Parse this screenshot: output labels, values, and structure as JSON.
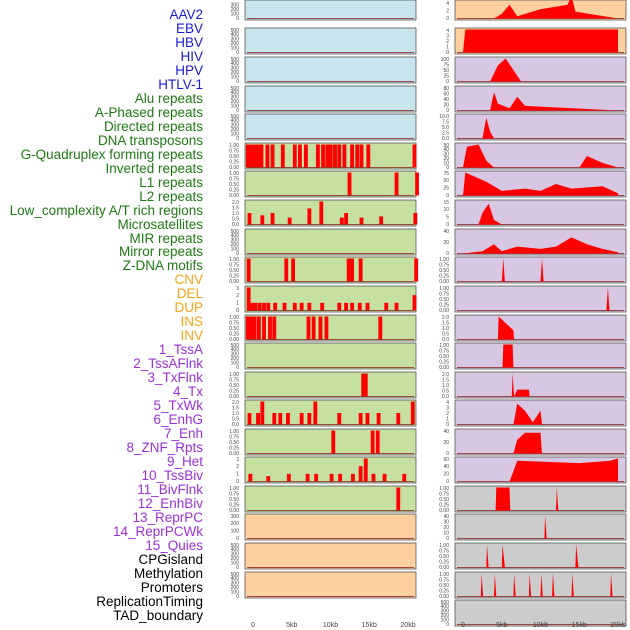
{
  "chart_data": {
    "type": "bar",
    "title": "",
    "x_ticks": [
      "0",
      "5kb",
      "10kb",
      "15kb",
      "20kb"
    ],
    "x_range": [
      0,
      20
    ],
    "x_units": "kb",
    "track_labels": [
      {
        "text": "AAV2",
        "color": "#1a1ad6"
      },
      {
        "text": "EBV",
        "color": "#1a1ad6"
      },
      {
        "text": "HBV",
        "color": "#1a1ad6"
      },
      {
        "text": "HIV",
        "color": "#1a1ad6"
      },
      {
        "text": "HPV",
        "color": "#1a1ad6"
      },
      {
        "text": "HTLV-1",
        "color": "#1a1ad6"
      },
      {
        "text": "Alu repeats",
        "color": "#1e7a12"
      },
      {
        "text": "A-Phased repeats",
        "color": "#1e7a12"
      },
      {
        "text": "Directed repeats",
        "color": "#1e7a12"
      },
      {
        "text": "DNA transposons",
        "color": "#1e7a12"
      },
      {
        "text": "G-Quadruplex forming repeats",
        "color": "#1e7a12"
      },
      {
        "text": "Inverted repeats",
        "color": "#1e7a12"
      },
      {
        "text": "L1 repeats",
        "color": "#1e7a12"
      },
      {
        "text": "L2 repeats",
        "color": "#1e7a12"
      },
      {
        "text": "Low_complexity A/T rich regions",
        "color": "#1e7a12"
      },
      {
        "text": "Microsatellites",
        "color": "#1e7a12"
      },
      {
        "text": "MIR repeats",
        "color": "#1e7a12"
      },
      {
        "text": "Mirror repeats",
        "color": "#1e7a12"
      },
      {
        "text": "Z-DNA motifs",
        "color": "#1e7a12"
      },
      {
        "text": "CNV",
        "color": "#f5a516"
      },
      {
        "text": "DEL",
        "color": "#f5a516"
      },
      {
        "text": "DUP",
        "color": "#f5a516"
      },
      {
        "text": "INS",
        "color": "#f5a516"
      },
      {
        "text": "INV",
        "color": "#f5a516"
      },
      {
        "text": "1_TssA",
        "color": "#9b30d9"
      },
      {
        "text": "2_TssAFlnk",
        "color": "#9b30d9"
      },
      {
        "text": "3_TxFlnk",
        "color": "#9b30d9"
      },
      {
        "text": "4_Tx",
        "color": "#9b30d9"
      },
      {
        "text": "5_TxWk",
        "color": "#9b30d9"
      },
      {
        "text": "6_EnhG",
        "color": "#9b30d9"
      },
      {
        "text": "7_Enh",
        "color": "#9b30d9"
      },
      {
        "text": "8_ZNF_Rpts",
        "color": "#9b30d9"
      },
      {
        "text": "9_Het",
        "color": "#9b30d9"
      },
      {
        "text": "10_TssBiv",
        "color": "#9b30d9"
      },
      {
        "text": "11_BivFlnk",
        "color": "#9b30d9"
      },
      {
        "text": "12_EnhBiv",
        "color": "#9b30d9"
      },
      {
        "text": "13_ReprPC",
        "color": "#9b30d9"
      },
      {
        "text": "14_ReprPCWk",
        "color": "#9b30d9"
      },
      {
        "text": "15_Quies",
        "color": "#9b30d9"
      },
      {
        "text": "CPGisland",
        "color": "#000000"
      },
      {
        "text": "Methylation",
        "color": "#000000"
      },
      {
        "text": "Promoters",
        "color": "#000000"
      },
      {
        "text": "ReplicationTiming",
        "color": "#000000"
      },
      {
        "text": "TAD_boundary",
        "color": "#000000"
      }
    ],
    "colors": {
      "blue_bg": "#c8e4ec",
      "green_bg": "#c6e0a2",
      "orange_bg": "#fdd09f",
      "purple_bg": "#d8c7e2",
      "gray_bg": "#cccccc",
      "bar": "#ff0000",
      "baseline": "#8b1a1a"
    },
    "left_panels": [
      {
        "bg": "blue",
        "ticks": [
          "500",
          "400",
          "300",
          "200",
          "100",
          "0"
        ],
        "max": 500,
        "bars": []
      },
      {
        "bg": "blue",
        "ticks": [
          "500",
          "400",
          "300",
          "200",
          "100",
          "0"
        ],
        "max": 500,
        "bars": []
      },
      {
        "bg": "blue",
        "ticks": [
          "500",
          "400",
          "300",
          "200",
          "100",
          "0"
        ],
        "max": 500,
        "bars": []
      },
      {
        "bg": "blue",
        "ticks": [
          "500",
          "400",
          "300",
          "200",
          "100",
          "0"
        ],
        "max": 500,
        "bars": []
      },
      {
        "bg": "blue",
        "ticks": [
          "500",
          "400",
          "300",
          "200",
          "100",
          "0"
        ],
        "max": 500,
        "bars": []
      },
      {
        "bg": "green",
        "ticks": [
          "1.00",
          "0.75",
          "0.50",
          "0.25",
          "0.00"
        ],
        "max": 1.0,
        "bars": [
          [
            0.1,
            1
          ],
          [
            0.5,
            1
          ],
          [
            0.9,
            1
          ],
          [
            1.3,
            1
          ],
          [
            1.7,
            1
          ],
          [
            2.4,
            1
          ],
          [
            3.0,
            1
          ],
          [
            4.2,
            1
          ],
          [
            5.6,
            1
          ],
          [
            6.2,
            1
          ],
          [
            6.9,
            1
          ],
          [
            8.3,
            1
          ],
          [
            8.9,
            1
          ],
          [
            9.4,
            1
          ],
          [
            9.8,
            1
          ],
          [
            10.3,
            1
          ],
          [
            10.8,
            1
          ],
          [
            11.4,
            1
          ],
          [
            12.3,
            1
          ],
          [
            12.9,
            1
          ],
          [
            13.4,
            1
          ],
          [
            14.2,
            1
          ],
          [
            19.6,
            1
          ]
        ]
      },
      {
        "bg": "green",
        "ticks": [
          "1.00",
          "0.75",
          "0.50",
          "0.25",
          "0.00"
        ],
        "max": 1.0,
        "bars": [
          [
            12.0,
            1
          ],
          [
            17.5,
            1
          ],
          [
            19.9,
            1
          ]
        ]
      },
      {
        "bg": "green",
        "ticks": [
          "2.0",
          "1.5",
          "1.0",
          "0.5",
          "0.0"
        ],
        "max": 2.0,
        "bars": [
          [
            0.3,
            1
          ],
          [
            1.8,
            0.8
          ],
          [
            3.0,
            1
          ],
          [
            5.0,
            0.6
          ],
          [
            7.3,
            1.4
          ],
          [
            8.7,
            2
          ],
          [
            11.1,
            0.6
          ],
          [
            11.6,
            1
          ],
          [
            13.4,
            0.6
          ],
          [
            15.7,
            0.7
          ],
          [
            19.7,
            1
          ]
        ]
      },
      {
        "bg": "green",
        "ticks": [
          "500",
          "400",
          "300",
          "200",
          "100",
          "0"
        ],
        "max": 500,
        "bars": []
      },
      {
        "bg": "green",
        "ticks": [
          "1.00",
          "0.75",
          "0.50",
          "0.25",
          "0.00"
        ],
        "max": 1.0,
        "bars": [
          [
            0.2,
            1
          ],
          [
            4.6,
            1
          ],
          [
            5.4,
            1
          ],
          [
            11.9,
            1
          ],
          [
            12.3,
            1
          ],
          [
            13.3,
            1
          ],
          [
            19.8,
            1
          ]
        ]
      },
      {
        "bg": "green",
        "ticks": [
          "3",
          "2",
          "1",
          "0"
        ],
        "max": 3,
        "bars": [
          [
            0.2,
            3
          ],
          [
            0.6,
            1
          ],
          [
            1.0,
            1
          ],
          [
            1.5,
            1
          ],
          [
            2.0,
            1
          ],
          [
            2.5,
            1
          ],
          [
            3.3,
            1
          ],
          [
            4.4,
            1
          ],
          [
            5.6,
            1
          ],
          [
            6.4,
            1
          ],
          [
            7.3,
            1
          ],
          [
            8.8,
            1
          ],
          [
            10.8,
            1
          ],
          [
            11.6,
            1
          ],
          [
            12.3,
            1
          ],
          [
            13.2,
            1
          ],
          [
            14.1,
            1
          ],
          [
            16.3,
            1
          ],
          [
            17.5,
            1
          ],
          [
            19.6,
            2
          ]
        ]
      },
      {
        "bg": "green",
        "ticks": [
          "1.00",
          "0.75",
          "0.50",
          "0.25",
          "0.00"
        ],
        "max": 1.0,
        "bars": [
          [
            0.1,
            1
          ],
          [
            0.5,
            1
          ],
          [
            0.9,
            1
          ],
          [
            1.4,
            1
          ],
          [
            2.0,
            1
          ],
          [
            2.7,
            1
          ],
          [
            3.2,
            1
          ],
          [
            7.2,
            1
          ],
          [
            7.8,
            1
          ],
          [
            8.6,
            1
          ],
          [
            9.3,
            1
          ],
          [
            15.6,
            1
          ]
        ]
      },
      {
        "bg": "green",
        "ticks": [
          "500",
          "400",
          "300",
          "200",
          "100",
          "0"
        ],
        "max": 500,
        "bars": []
      },
      {
        "bg": "green",
        "ticks": [
          "1.00",
          "0.75",
          "0.50",
          "0.25",
          "0.00"
        ],
        "max": 1.0,
        "bars": [
          [
            13.6,
            1
          ],
          [
            13.9,
            1
          ]
        ]
      },
      {
        "bg": "green",
        "ticks": [
          "2.0",
          "1.5",
          "1.0",
          "0.5",
          "0.0"
        ],
        "max": 2.0,
        "bars": [
          [
            0.3,
            1
          ],
          [
            1.3,
            1
          ],
          [
            1.8,
            2
          ],
          [
            3.2,
            1
          ],
          [
            3.9,
            1
          ],
          [
            4.8,
            1
          ],
          [
            6.4,
            1
          ],
          [
            7.3,
            1
          ],
          [
            8.0,
            2
          ],
          [
            10.8,
            1
          ],
          [
            13.3,
            1
          ],
          [
            14.1,
            1
          ],
          [
            15.4,
            1
          ],
          [
            17.7,
            1
          ],
          [
            19.4,
            2
          ]
        ]
      },
      {
        "bg": "green",
        "ticks": [
          "1.00",
          "0.75",
          "0.50",
          "0.25",
          "0.00"
        ],
        "max": 1.0,
        "bars": [
          [
            10.1,
            1
          ],
          [
            14.7,
            1
          ],
          [
            15.3,
            1
          ]
        ]
      },
      {
        "bg": "green",
        "ticks": [
          "3",
          "2",
          "1",
          "0"
        ],
        "max": 3,
        "bars": [
          [
            0.4,
            1
          ],
          [
            2.5,
            0.7
          ],
          [
            4.9,
            1
          ],
          [
            7.1,
            1
          ],
          [
            8.1,
            1
          ],
          [
            9.9,
            1
          ],
          [
            10.9,
            1
          ],
          [
            12.4,
            1
          ],
          [
            13.3,
            2
          ],
          [
            13.9,
            3
          ],
          [
            14.8,
            1
          ],
          [
            16.1,
            1
          ],
          [
            18.4,
            1
          ]
        ]
      },
      {
        "bg": "green",
        "ticks": [
          "1.00",
          "0.75",
          "0.50",
          "0.25",
          "0.00"
        ],
        "max": 1.0,
        "bars": [
          [
            17.7,
            1
          ]
        ]
      },
      {
        "bg": "orange",
        "ticks": [
          "300",
          "200",
          "100",
          "0"
        ],
        "max": 300,
        "bars": []
      },
      {
        "bg": "orange",
        "ticks": [
          "500",
          "400",
          "300",
          "200",
          "100",
          "0"
        ],
        "max": 500,
        "bars": []
      },
      {
        "bg": "orange",
        "ticks": [
          "500",
          "400",
          "300",
          "200",
          "100",
          "0"
        ],
        "max": 500,
        "bars": []
      }
    ],
    "right_panels": [
      {
        "bg": "orange",
        "ticks": [
          "6",
          "4",
          "2",
          "0"
        ],
        "max": 6,
        "bars": []
      },
      {
        "bg": "orange",
        "ticks": [
          "4",
          "3",
          "2",
          "1",
          "0"
        ],
        "max": 4,
        "bars": []
      },
      {
        "bg": "purple",
        "ticks": [
          "100",
          "75",
          "50",
          "25",
          "0"
        ],
        "max": 100,
        "bars": []
      },
      {
        "bg": "purple",
        "ticks": [
          "80",
          "60",
          "40",
          "20",
          "0"
        ],
        "max": 80,
        "bars": []
      },
      {
        "bg": "purple",
        "ticks": [
          "10.0",
          "7.5",
          "5.0",
          "2.5",
          "0.0"
        ],
        "max": 10,
        "bars": []
      },
      {
        "bg": "purple",
        "ticks": [
          "50",
          "40",
          "30",
          "20",
          "10",
          "0"
        ],
        "max": 50,
        "bars": []
      },
      {
        "bg": "purple",
        "ticks": [
          "75",
          "50",
          "25",
          "0"
        ],
        "max": 75,
        "bars": []
      },
      {
        "bg": "purple",
        "ticks": [
          "15",
          "10",
          "5",
          "0"
        ],
        "max": 15,
        "bars": []
      },
      {
        "bg": "purple",
        "ticks": [
          "40",
          "20",
          "0"
        ],
        "max": 40,
        "bars": []
      },
      {
        "bg": "purple",
        "ticks": [
          "1.00",
          "0.75",
          "0.50",
          "0.25",
          "0.00"
        ],
        "max": 1.0,
        "bars": []
      },
      {
        "bg": "purple",
        "ticks": [
          "1.00",
          "0.75",
          "0.50",
          "0.25",
          "0.00"
        ],
        "max": 1.0,
        "bars": []
      },
      {
        "bg": "purple",
        "ticks": [
          "2.0",
          "1.5",
          "1.0",
          "0.5",
          "0.0"
        ],
        "max": 2.0,
        "bars": []
      },
      {
        "bg": "purple",
        "ticks": [
          "1.00",
          "0.75",
          "0.50",
          "0.25",
          "0.00"
        ],
        "max": 1.0,
        "bars": []
      },
      {
        "bg": "purple",
        "ticks": [
          "2.0",
          "1.5",
          "1.0",
          "0.5",
          "0.0"
        ],
        "max": 2.0,
        "bars": []
      },
      {
        "bg": "purple",
        "ticks": [
          "4",
          "3",
          "2",
          "1",
          "0"
        ],
        "max": 4,
        "bars": []
      },
      {
        "bg": "purple",
        "ticks": [
          "40",
          "20",
          "0"
        ],
        "max": 40,
        "bars": []
      },
      {
        "bg": "purple",
        "ticks": [
          "60",
          "40",
          "20",
          "0"
        ],
        "max": 60,
        "bars": []
      },
      {
        "bg": "gray",
        "ticks": [
          "1.00",
          "0.75",
          "0.50",
          "0.25",
          "0.00"
        ],
        "max": 1.0,
        "bars": []
      },
      {
        "bg": "gray",
        "ticks": [
          "40",
          "30",
          "20",
          "10",
          "0"
        ],
        "max": 40,
        "bars": []
      },
      {
        "bg": "gray",
        "ticks": [
          "1.00",
          "0.75",
          "0.50",
          "0.25",
          "0.00"
        ],
        "max": 1.0,
        "bars": []
      },
      {
        "bg": "gray",
        "ticks": [
          "1.00",
          "0.75",
          "0.50",
          "0.25",
          "0.00"
        ],
        "max": 1.0,
        "bars": []
      },
      {
        "bg": "gray",
        "ticks": [
          "500",
          "400",
          "300",
          "200",
          "100",
          "0"
        ],
        "max": 500,
        "bars": []
      }
    ]
  }
}
